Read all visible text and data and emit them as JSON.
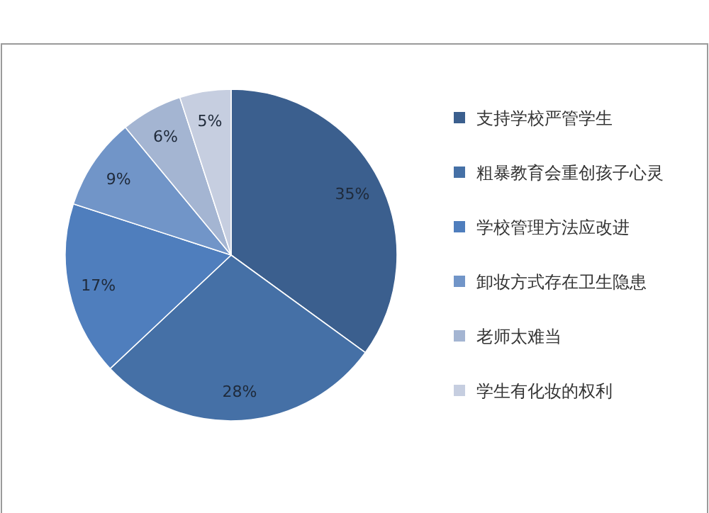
{
  "chart_data": {
    "type": "pie",
    "categories": [
      "支持学校严管学生",
      "粗暴教育会重创孩子心灵",
      "学校管理方法应改进",
      "卸妆方式存在卫生隐患",
      "老师太难当",
      "学生有化妆的权利"
    ],
    "values": [
      35,
      28,
      17,
      9,
      6,
      5
    ],
    "colors": [
      "#3b5f8e",
      "#4570a6",
      "#4f7ebd",
      "#7195c8",
      "#a4b5d2",
      "#c6cee0"
    ],
    "value_labels": [
      "35%",
      "28%",
      "17%",
      "9%",
      "6%",
      "5%"
    ],
    "legend": "right"
  }
}
